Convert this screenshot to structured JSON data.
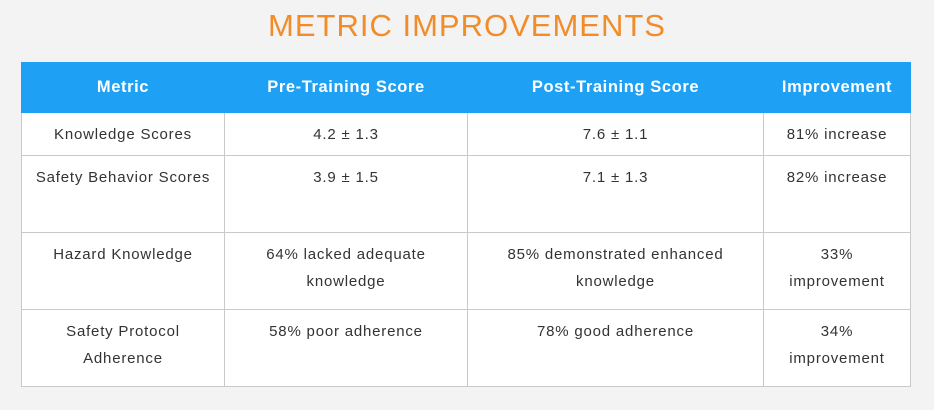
{
  "title": "METRIC IMPROVEMENTS",
  "colors": {
    "title": "#f28c28",
    "header_background": "#1ea0f5",
    "header_text": "#ffffff",
    "page_background": "#f3f3f3",
    "border": "#c9c9c9"
  },
  "table": {
    "headers": [
      "Metric",
      "Pre-Training Score",
      "Post-Training Score",
      "Improvement"
    ],
    "rows": [
      [
        "Knowledge Scores",
        "4.2 ± 1.3",
        "7.6 ± 1.1",
        "81% increase"
      ],
      [
        "Safety Behavior Scores",
        "3.9 ± 1.5",
        "7.1 ± 1.3",
        "82% increase"
      ],
      [
        "Hazard Knowledge",
        "64% lacked adequate knowledge",
        "85% demonstrated enhanced knowledge",
        "33% improvement"
      ],
      [
        "Safety Protocol Adherence",
        "58% poor adherence",
        "78% good adherence",
        "34% improvement"
      ]
    ]
  }
}
